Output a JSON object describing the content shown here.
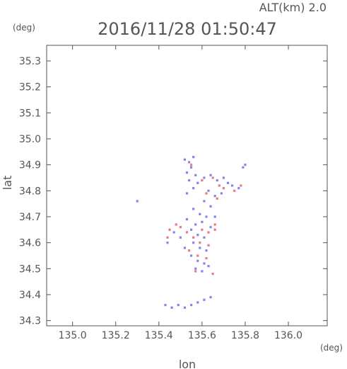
{
  "chart_data": {
    "type": "scatter",
    "title": "2016/11/28 01:50:47",
    "subtitle": "ALT(km) 2.0",
    "xlabel": "lon",
    "ylabel": "lat",
    "x_unit": "(deg)",
    "y_unit": "(deg)",
    "xlim": [
      134.88,
      136.18
    ],
    "ylim": [
      34.28,
      35.36
    ],
    "x_ticks": [
      "135.0",
      "135.2",
      "135.4",
      "135.6",
      "135.8",
      "136.0"
    ],
    "y_ticks": [
      "34.3",
      "34.4",
      "34.5",
      "34.6",
      "34.7",
      "34.8",
      "34.9",
      "35.0",
      "35.1",
      "35.2",
      "35.3"
    ],
    "grid": false,
    "colors": {
      "positive": "#e8626a",
      "negative": "#6f6fe6",
      "axis": "#555555"
    },
    "series": [
      {
        "values": [
          [
            135.52,
            34.92
          ],
          [
            135.54,
            34.91
          ],
          [
            135.56,
            34.93
          ],
          [
            135.55,
            34.89
          ],
          [
            135.53,
            34.87
          ],
          [
            135.57,
            34.86
          ],
          [
            135.54,
            34.84
          ],
          [
            135.58,
            34.83
          ],
          [
            135.56,
            34.81
          ],
          [
            135.53,
            34.79
          ],
          [
            135.61,
            34.85
          ],
          [
            135.64,
            34.86
          ],
          [
            135.67,
            34.84
          ],
          [
            135.7,
            34.85
          ],
          [
            135.72,
            34.83
          ],
          [
            135.74,
            34.82
          ],
          [
            135.77,
            34.81
          ],
          [
            135.79,
            34.89
          ],
          [
            135.8,
            34.9
          ],
          [
            135.63,
            34.8
          ],
          [
            135.66,
            34.78
          ],
          [
            135.69,
            34.79
          ],
          [
            135.61,
            34.76
          ],
          [
            135.64,
            34.74
          ],
          [
            135.56,
            34.73
          ],
          [
            135.59,
            34.71
          ],
          [
            135.62,
            34.7
          ],
          [
            135.53,
            34.69
          ],
          [
            135.57,
            34.67
          ],
          [
            135.6,
            34.68
          ],
          [
            135.64,
            34.66
          ],
          [
            135.66,
            34.7
          ],
          [
            135.55,
            34.65
          ],
          [
            135.58,
            34.63
          ],
          [
            135.61,
            34.62
          ],
          [
            135.56,
            34.6
          ],
          [
            135.59,
            34.58
          ],
          [
            135.62,
            34.57
          ],
          [
            135.55,
            34.55
          ],
          [
            135.58,
            34.53
          ],
          [
            135.61,
            34.52
          ],
          [
            135.57,
            34.5
          ],
          [
            135.6,
            34.49
          ],
          [
            135.63,
            34.51
          ],
          [
            135.5,
            34.62
          ],
          [
            135.47,
            34.64
          ],
          [
            135.44,
            34.6
          ],
          [
            135.52,
            34.58
          ],
          [
            135.3,
            34.76
          ],
          [
            135.43,
            34.36
          ],
          [
            135.46,
            34.35
          ],
          [
            135.49,
            34.36
          ],
          [
            135.52,
            34.35
          ],
          [
            135.55,
            34.36
          ],
          [
            135.58,
            34.37
          ],
          [
            135.61,
            34.38
          ],
          [
            135.64,
            34.39
          ]
        ]
      },
      {
        "values": [
          [
            135.55,
            34.9
          ],
          [
            135.6,
            34.84
          ],
          [
            135.65,
            34.85
          ],
          [
            135.68,
            34.82
          ],
          [
            135.75,
            34.8
          ],
          [
            135.78,
            34.82
          ],
          [
            135.62,
            34.79
          ],
          [
            135.67,
            34.77
          ],
          [
            135.7,
            34.81
          ],
          [
            135.5,
            34.66
          ],
          [
            135.53,
            34.64
          ],
          [
            135.45,
            34.65
          ],
          [
            135.6,
            34.65
          ],
          [
            135.63,
            34.64
          ],
          [
            135.66,
            34.65
          ],
          [
            135.56,
            34.62
          ],
          [
            135.59,
            34.6
          ],
          [
            135.63,
            34.59
          ],
          [
            135.54,
            34.57
          ],
          [
            135.58,
            34.55
          ],
          [
            135.62,
            34.54
          ],
          [
            135.57,
            34.49
          ],
          [
            135.65,
            34.48
          ],
          [
            135.44,
            34.62
          ],
          [
            135.48,
            34.67
          ],
          [
            135.66,
            34.67
          ]
        ]
      }
    ]
  }
}
